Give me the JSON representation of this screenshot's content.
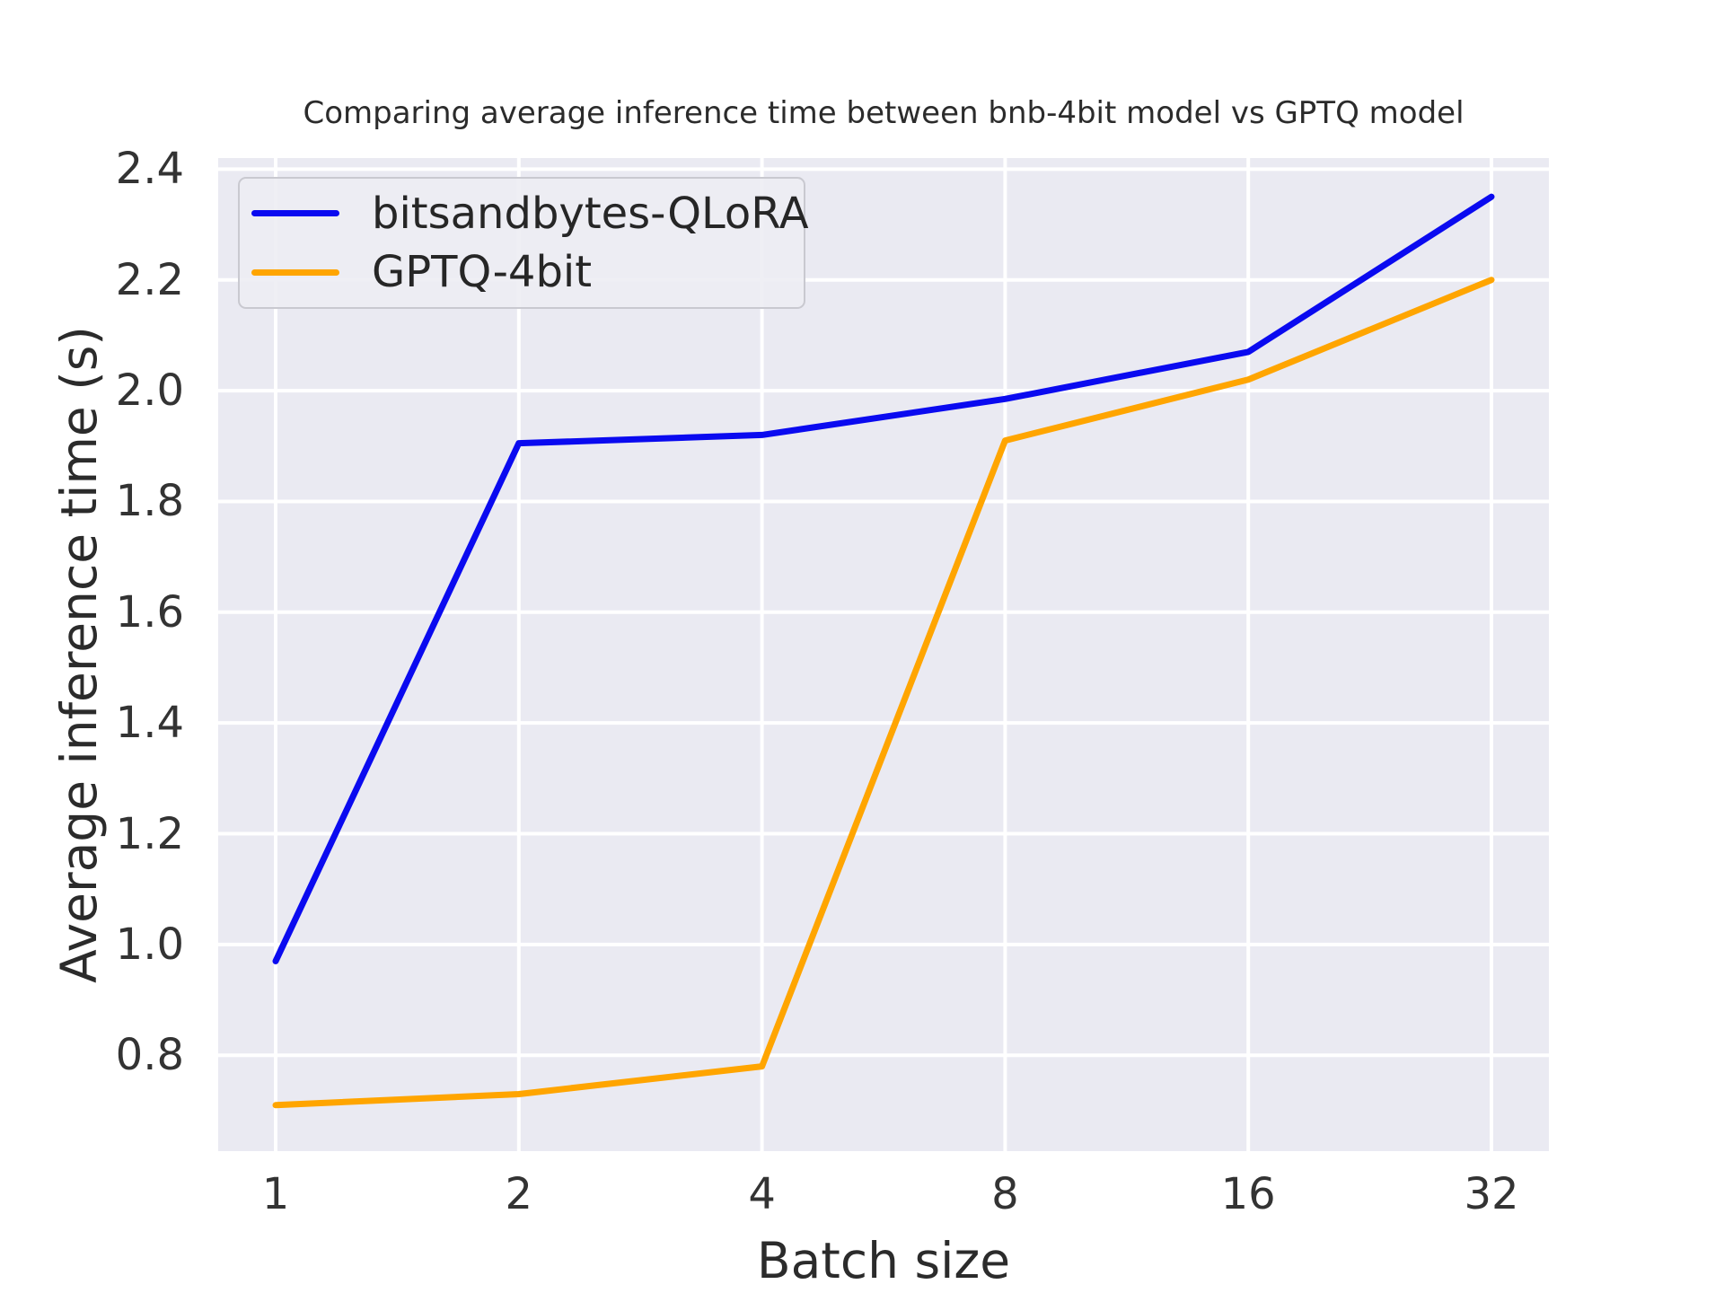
{
  "chart_data": {
    "type": "line",
    "title": "Comparing average inference time between bnb-4bit model vs GPTQ model",
    "xlabel": "Batch size",
    "ylabel": "Average inference time (s)",
    "categories": [
      "1",
      "2",
      "4",
      "8",
      "16",
      "32"
    ],
    "series": [
      {
        "name": "bitsandbytes-QLoRA",
        "color": "#0a0af0",
        "values": [
          0.97,
          1.905,
          1.92,
          1.985,
          2.07,
          2.35
        ]
      },
      {
        "name": "GPTQ-4bit",
        "color": "#ffa500",
        "values": [
          0.71,
          0.73,
          0.78,
          1.91,
          2.02,
          2.2
        ]
      }
    ],
    "yticks": [
      0.8,
      1.0,
      1.2,
      1.4,
      1.6,
      1.8,
      2.0,
      2.2,
      2.4
    ],
    "ylim": [
      0.627,
      2.42
    ],
    "grid": true,
    "legend_position": "upper left",
    "plot_background": "#eaeaf2",
    "grid_color": "#ffffff",
    "text_color": "#262626"
  }
}
